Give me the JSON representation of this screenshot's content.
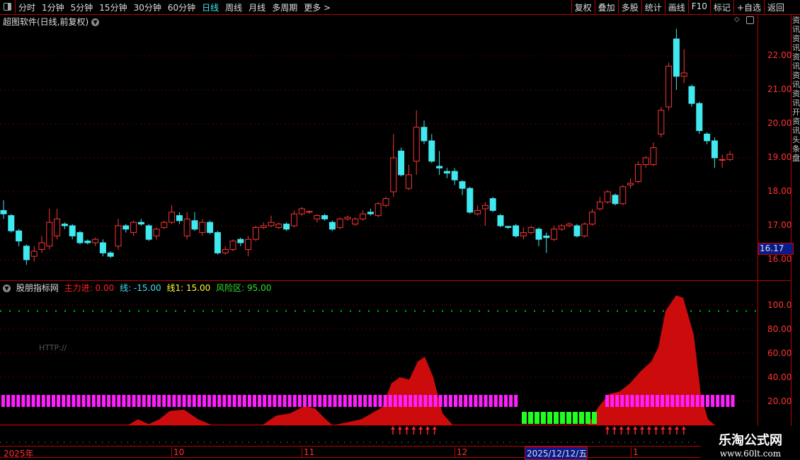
{
  "toolbar": {
    "periods": [
      "分时",
      "1分钟",
      "5分钟",
      "15分钟",
      "30分钟",
      "60分钟",
      "日线",
      "周线",
      "月线",
      "多周期",
      "更多 >"
    ],
    "active_period": "日线",
    "tools": [
      "复权",
      "叠加",
      "多股",
      "统计",
      "画线",
      "F10",
      "标记",
      "+自选",
      "返回"
    ]
  },
  "main_chart": {
    "title": "超图软件(日线,前复权)",
    "price_labels": [
      "22.00",
      "21.00",
      "20.00",
      "19.00",
      "18.00",
      "17.00",
      "16.00"
    ],
    "current_price": "16.17",
    "colors": {
      "up": "#ff3333",
      "down": "#40e8f0",
      "grid": "#b00000"
    }
  },
  "chart_data": {
    "type": "candlestick",
    "ylim": [
      15.75,
      22.95
    ],
    "ticks": [
      16,
      17,
      18,
      19,
      20,
      21,
      22
    ],
    "candles": [
      [
        17.45,
        17.35,
        17.75,
        17.2
      ],
      [
        17.3,
        16.85,
        17.35,
        16.8
      ],
      [
        16.85,
        16.55,
        16.9,
        16.4
      ],
      [
        16.4,
        16.0,
        16.45,
        15.85
      ],
      [
        16.1,
        16.25,
        16.4,
        15.95
      ],
      [
        16.3,
        16.5,
        16.7,
        16.2
      ],
      [
        16.4,
        17.1,
        17.5,
        16.3
      ],
      [
        16.7,
        17.2,
        17.5,
        16.6
      ],
      [
        17.05,
        17.0,
        17.1,
        16.9
      ],
      [
        17.0,
        16.7,
        17.05,
        16.6
      ],
      [
        16.8,
        16.5,
        16.85,
        16.45
      ],
      [
        16.55,
        16.5,
        16.6,
        16.45
      ],
      [
        16.5,
        16.6,
        16.65,
        16.4
      ],
      [
        16.5,
        16.2,
        16.6,
        16.1
      ],
      [
        16.2,
        16.1,
        16.25,
        16.05
      ],
      [
        16.4,
        17.0,
        17.2,
        16.3
      ],
      [
        17.0,
        16.9,
        17.05,
        16.8
      ],
      [
        16.8,
        17.1,
        17.15,
        16.7
      ],
      [
        17.1,
        17.05,
        17.2,
        17.0
      ],
      [
        17.0,
        16.6,
        17.05,
        16.55
      ],
      [
        16.7,
        16.9,
        16.95,
        16.6
      ],
      [
        16.95,
        17.1,
        17.15,
        16.9
      ],
      [
        17.1,
        17.4,
        17.6,
        17.05
      ],
      [
        17.3,
        17.15,
        17.4,
        17.05
      ],
      [
        16.7,
        17.2,
        17.4,
        16.6
      ],
      [
        17.15,
        16.9,
        17.4,
        16.85
      ],
      [
        16.8,
        17.1,
        17.2,
        16.7
      ],
      [
        17.1,
        16.8,
        17.15,
        16.75
      ],
      [
        16.8,
        16.2,
        16.85,
        16.15
      ],
      [
        16.2,
        16.3,
        16.4,
        16.15
      ],
      [
        16.3,
        16.55,
        16.6,
        16.25
      ],
      [
        16.6,
        16.5,
        16.65,
        16.4
      ],
      [
        16.3,
        16.6,
        16.7,
        16.1
      ],
      [
        16.6,
        16.95,
        17.0,
        16.55
      ],
      [
        16.95,
        17.0,
        17.1,
        16.9
      ],
      [
        17.0,
        17.1,
        17.3,
        16.95
      ],
      [
        16.95,
        17.05,
        17.1,
        16.9
      ],
      [
        17.05,
        16.9,
        17.1,
        16.85
      ],
      [
        17.0,
        17.35,
        17.45,
        16.95
      ],
      [
        17.35,
        17.5,
        17.55,
        17.3
      ],
      [
        17.4,
        17.42,
        17.45,
        17.35
      ],
      [
        17.2,
        17.3,
        17.35,
        17.1
      ],
      [
        17.3,
        17.2,
        17.35,
        17.15
      ],
      [
        17.1,
        16.9,
        17.15,
        16.85
      ],
      [
        16.95,
        17.2,
        17.25,
        16.9
      ],
      [
        17.2,
        17.25,
        17.3,
        17.15
      ],
      [
        17.05,
        17.2,
        17.25,
        17.0
      ],
      [
        17.2,
        17.35,
        17.45,
        17.15
      ],
      [
        17.4,
        17.35,
        17.5,
        17.3
      ],
      [
        17.3,
        17.65,
        17.7,
        17.25
      ],
      [
        17.6,
        17.8,
        17.85,
        17.55
      ],
      [
        18.0,
        19.0,
        19.7,
        17.85
      ],
      [
        19.2,
        18.5,
        19.3,
        18.45
      ],
      [
        18.1,
        18.5,
        18.8,
        18.05
      ],
      [
        18.9,
        19.9,
        20.4,
        18.5
      ],
      [
        19.9,
        19.5,
        20.1,
        19.4
      ],
      [
        19.5,
        18.9,
        19.7,
        18.85
      ],
      [
        18.75,
        18.7,
        19.2,
        18.5
      ],
      [
        18.6,
        18.55,
        18.7,
        18.4
      ],
      [
        18.6,
        18.35,
        18.7,
        18.2
      ],
      [
        18.3,
        18.1,
        18.35,
        17.9
      ],
      [
        18.1,
        17.4,
        18.15,
        17.35
      ],
      [
        17.35,
        17.45,
        17.6,
        17.3
      ],
      [
        17.5,
        17.6,
        17.7,
        17.0
      ],
      [
        17.8,
        17.45,
        17.85,
        17.4
      ],
      [
        17.3,
        17.0,
        17.35,
        16.95
      ],
      [
        16.98,
        16.95,
        17.0,
        16.9
      ],
      [
        17.0,
        16.7,
        17.05,
        16.65
      ],
      [
        16.7,
        16.8,
        16.95,
        16.6
      ],
      [
        16.8,
        16.95,
        17.0,
        16.75
      ],
      [
        16.9,
        16.6,
        16.95,
        16.4
      ],
      [
        16.7,
        16.65,
        16.8,
        16.2
      ],
      [
        16.6,
        16.9,
        17.0,
        16.55
      ],
      [
        16.9,
        17.0,
        17.05,
        16.85
      ],
      [
        17.0,
        17.05,
        17.1,
        16.95
      ],
      [
        17.0,
        16.7,
        17.05,
        16.65
      ],
      [
        16.7,
        17.05,
        17.1,
        16.65
      ],
      [
        17.05,
        17.4,
        17.5,
        17.0
      ],
      [
        17.5,
        17.7,
        17.85,
        17.45
      ],
      [
        17.7,
        18.0,
        18.05,
        17.65
      ],
      [
        17.9,
        17.65,
        17.95,
        17.6
      ],
      [
        17.65,
        18.15,
        18.2,
        17.6
      ],
      [
        18.2,
        18.25,
        18.4,
        18.1
      ],
      [
        18.3,
        18.8,
        18.9,
        18.25
      ],
      [
        18.8,
        19.0,
        19.05,
        18.7
      ],
      [
        18.8,
        19.3,
        19.45,
        18.75
      ],
      [
        19.7,
        20.4,
        20.5,
        19.6
      ],
      [
        20.5,
        21.7,
        21.8,
        20.4
      ],
      [
        22.5,
        21.4,
        22.8,
        21.0
      ],
      [
        21.4,
        21.5,
        22.2,
        21.2
      ],
      [
        21.1,
        20.6,
        21.15,
        20.5
      ],
      [
        20.6,
        19.8,
        20.65,
        19.7
      ],
      [
        19.7,
        19.5,
        19.75,
        19.4
      ],
      [
        19.5,
        19.0,
        19.6,
        18.7
      ],
      [
        18.95,
        18.95,
        19.1,
        18.7
      ],
      [
        18.95,
        19.1,
        19.2,
        18.9
      ]
    ],
    "indicator": {
      "ylim": [
        0,
        110
      ],
      "ticks": [
        "100.0",
        "80.00",
        "60.00",
        "40.00",
        "20.00"
      ],
      "red_area": [
        [
          0,
          0
        ],
        [
          180,
          0
        ],
        [
          195,
          5
        ],
        [
          210,
          1
        ],
        [
          225,
          5
        ],
        [
          240,
          12
        ],
        [
          260,
          13
        ],
        [
          280,
          5
        ],
        [
          300,
          0
        ],
        [
          370,
          0
        ],
        [
          390,
          8
        ],
        [
          410,
          10
        ],
        [
          430,
          16
        ],
        [
          445,
          14
        ],
        [
          460,
          5
        ],
        [
          470,
          0
        ],
        [
          510,
          5
        ],
        [
          540,
          15
        ],
        [
          553,
          35
        ],
        [
          565,
          40
        ],
        [
          578,
          38
        ],
        [
          590,
          53
        ],
        [
          600,
          57
        ],
        [
          612,
          40
        ],
        [
          625,
          10
        ],
        [
          640,
          0
        ],
        [
          830,
          0
        ],
        [
          845,
          15
        ],
        [
          860,
          26
        ],
        [
          875,
          28
        ],
        [
          890,
          35
        ],
        [
          905,
          45
        ],
        [
          920,
          53
        ],
        [
          930,
          65
        ],
        [
          940,
          95
        ],
        [
          955,
          108
        ],
        [
          965,
          106
        ],
        [
          980,
          75
        ],
        [
          990,
          25
        ],
        [
          1000,
          5
        ],
        [
          1010,
          0
        ]
      ],
      "magenta_bar_ranges": [
        [
          2,
          733
        ],
        [
          855,
          1035
        ]
      ],
      "green_bar_range": [
        737,
        840
      ],
      "arrow_ranges": [
        [
          555,
          622
        ],
        [
          858,
          975
        ]
      ],
      "risk_level": 95
    }
  },
  "indicator": {
    "name": "股朋指标网",
    "values": [
      {
        "label": "主力进: 0.00",
        "color": "#ff2020"
      },
      {
        "label": "线: -15.00",
        "color": "#40e0f0"
      },
      {
        "label": "线1: 15.00",
        "color": "#ffff30"
      },
      {
        "label": "风险区: 95.00",
        "color": "#30e030"
      }
    ],
    "watermark_text": "HTTP://"
  },
  "date_axis": {
    "labels": [
      "2025年",
      "10",
      "11",
      "12",
      "1"
    ],
    "cursor_date": "2025/12/12/五"
  },
  "side_tabs": "资讯资讯资讯资讯资讯开资讯头条盘",
  "watermark": {
    "name": "乐淘公式网",
    "url": "www.60lt.com"
  }
}
